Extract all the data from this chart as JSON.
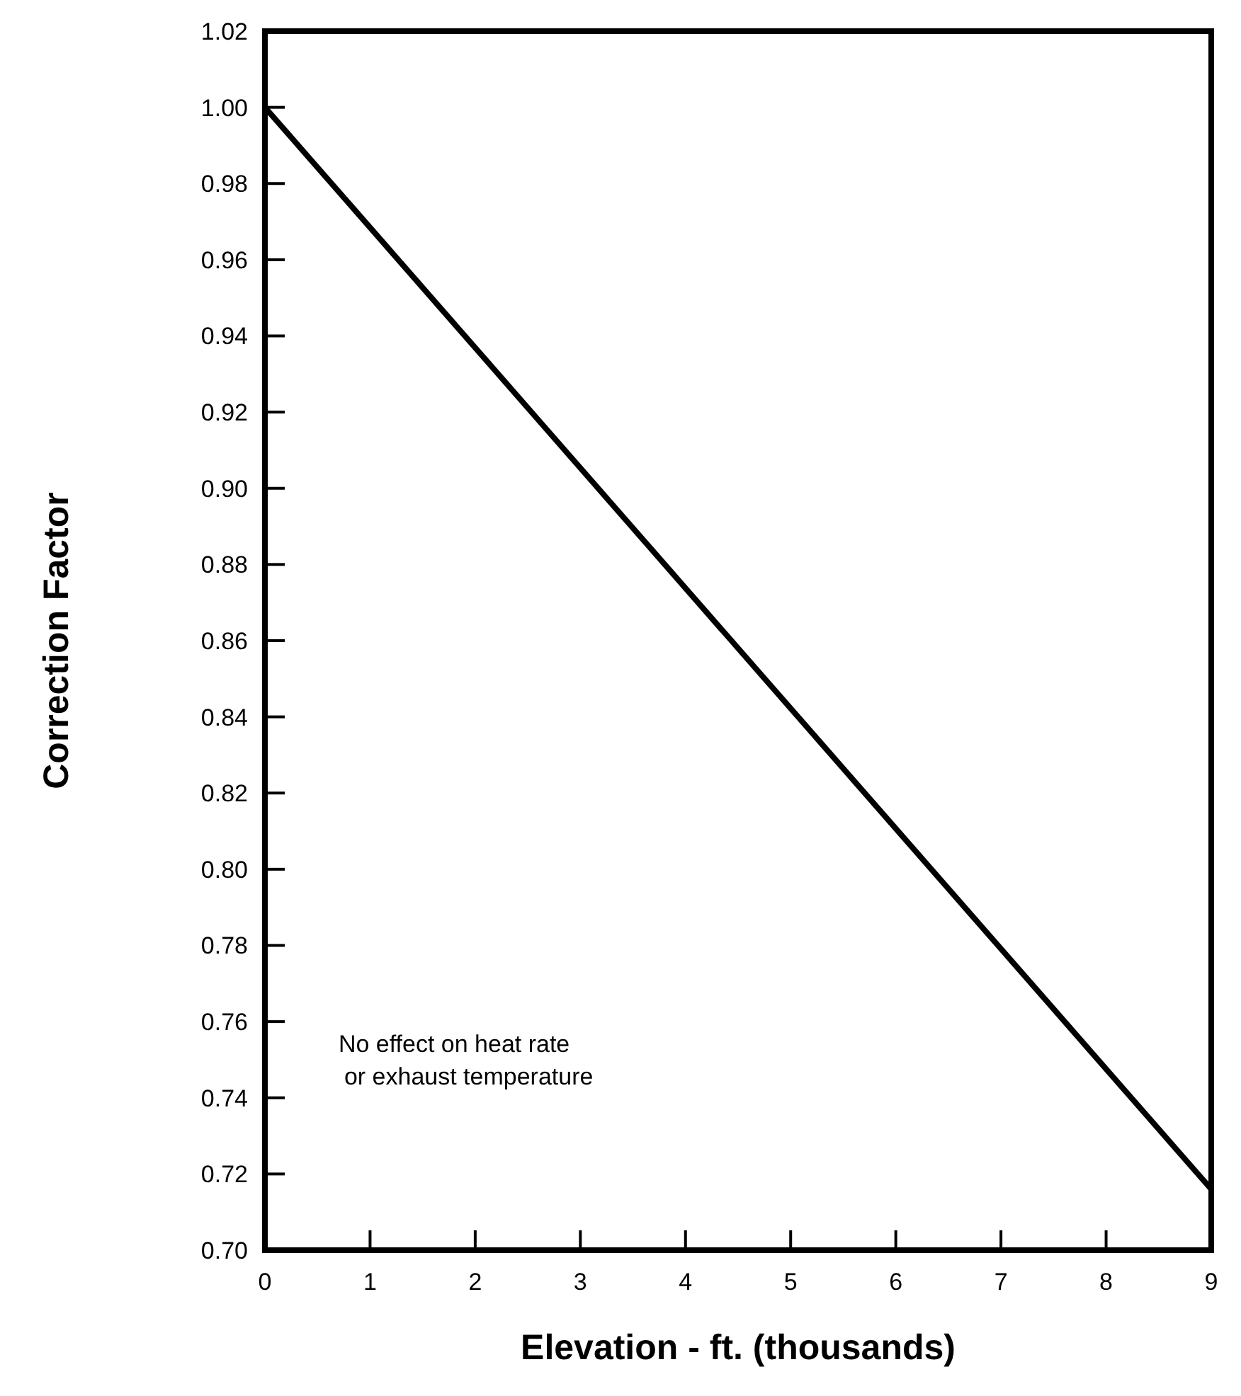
{
  "chart_data": {
    "type": "line",
    "xlabel": "Elevation - ft. (thousands)",
    "ylabel": "Correction Factor",
    "x": [
      0,
      9
    ],
    "series": [
      {
        "color": "#000000",
        "values": [
          1.0,
          0.716
        ]
      }
    ],
    "xlim": [
      0,
      9
    ],
    "xticks": [
      0,
      1,
      2,
      3,
      4,
      5,
      6,
      7,
      8,
      9
    ],
    "ylim": [
      0.7,
      1.02
    ],
    "yticks": [
      {
        "value": 0.7,
        "label": "0.70"
      },
      {
        "value": 0.72,
        "label": "0.72"
      },
      {
        "value": 0.74,
        "label": "0.74"
      },
      {
        "value": 0.76,
        "label": "0.76"
      },
      {
        "value": 0.78,
        "label": "0.78"
      },
      {
        "value": 0.8,
        "label": "0.80"
      },
      {
        "value": 0.82,
        "label": "0.82"
      },
      {
        "value": 0.84,
        "label": "0.84"
      },
      {
        "value": 0.86,
        "label": "0.86"
      },
      {
        "value": 0.88,
        "label": "0.88"
      },
      {
        "value": 0.9,
        "label": "0.90"
      },
      {
        "value": 0.92,
        "label": "0.92"
      },
      {
        "value": 0.94,
        "label": "0.94"
      },
      {
        "value": 0.96,
        "label": "0.96"
      },
      {
        "value": 0.98,
        "label": "0.98"
      },
      {
        "value": 1.0,
        "label": "1.00"
      },
      {
        "value": 1.02,
        "label": "1.02"
      }
    ],
    "annotations": [
      "No effect on heat rate\nor exhaust temperature"
    ],
    "grid": false,
    "marker": "none",
    "line_style": "solid"
  }
}
